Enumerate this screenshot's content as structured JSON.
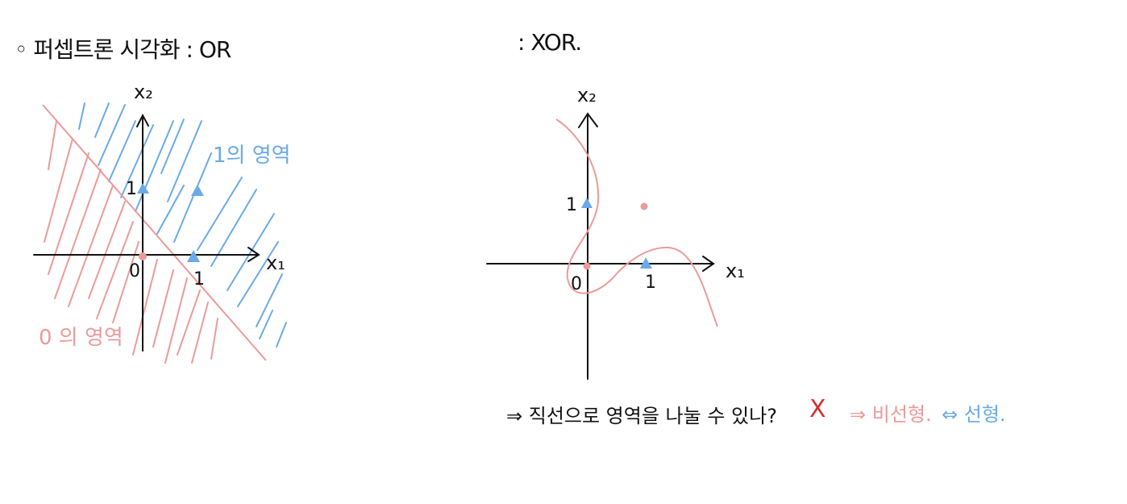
{
  "left": {
    "heading": "◦ 퍼셉트론 시각화 : OR",
    "x2_label": "x₂",
    "x1_label": "x₁",
    "tick_one_y": "1",
    "tick_one_x": "1",
    "origin": "0",
    "region_one": "1의 영역",
    "region_zero": "0 의 영역"
  },
  "right": {
    "heading": ": XOR.",
    "x2_label": "x₂",
    "x1_label": "x₁",
    "tick_one_y": "1",
    "tick_one_x": "1",
    "origin": "0"
  },
  "bottom": {
    "question": "⇒ 직선으로  영역을  나눌 수  있나?",
    "cross_mark": "X",
    "nonlinear": "⇒ 비선형.",
    "linear": "⇔ 선형."
  },
  "colors": {
    "pink": "#ec9a9a",
    "blue": "#6aaae8",
    "red": "#d23030",
    "ink": "#111111"
  }
}
